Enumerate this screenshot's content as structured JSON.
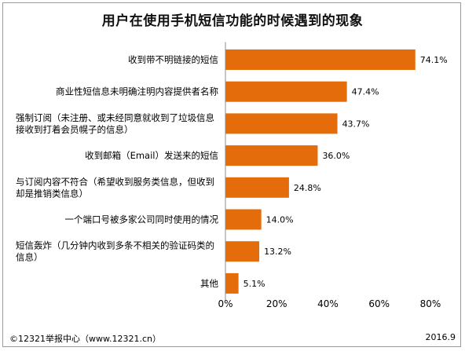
{
  "chart_data": {
    "type": "bar",
    "orientation": "horizontal",
    "title": "用户在使用手机短信功能的时候遇到的现象",
    "categories": [
      [
        "收到带不明链接的短信"
      ],
      [
        "商业性短信息未明确注明内容提供者名称"
      ],
      [
        "强制订阅（未注册、或未经同意就收到了垃圾信息",
        "接收到打着会员幌子的信息）"
      ],
      [
        "收到邮箱（Email）发送来的短信"
      ],
      [
        "与订阅内容不符合（希望收到服务类信息，但收到",
        "却是推销类信息）"
      ],
      [
        "一个端口号被多家公司同时使用的情况"
      ],
      [
        "短信轰炸（几分钟内收到多条不相关的验证码类的",
        "信息）"
      ],
      [
        "其他"
      ]
    ],
    "values": [
      74.1,
      47.4,
      43.7,
      36.0,
      24.8,
      14.0,
      13.2,
      5.1
    ],
    "value_labels": [
      "74.1%",
      "47.4%",
      "43.7%",
      "36.0%",
      "24.8%",
      "14.0%",
      "13.2%",
      "5.1%"
    ],
    "xlim": [
      0,
      80
    ],
    "xticks": [
      "0%",
      "20%",
      "40%",
      "60%",
      "80%"
    ],
    "bar_color": "#E46C0A",
    "grid": false
  },
  "footer": {
    "source": "©12321举报中心（www.12321.cn）",
    "date": "2016.9"
  }
}
